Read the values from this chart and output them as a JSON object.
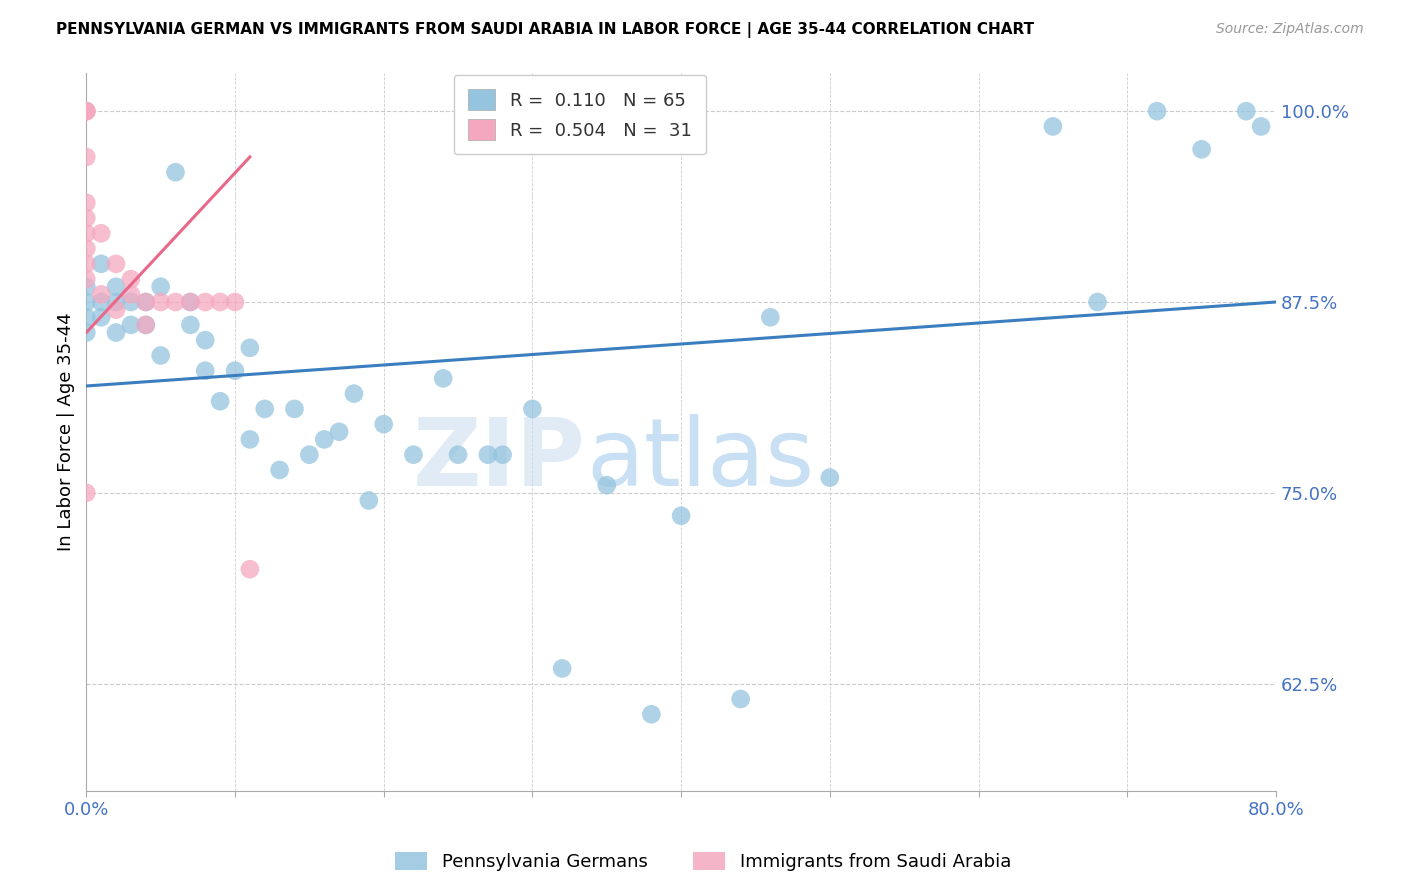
{
  "title": "PENNSYLVANIA GERMAN VS IMMIGRANTS FROM SAUDI ARABIA IN LABOR FORCE | AGE 35-44 CORRELATION CHART",
  "source": "Source: ZipAtlas.com",
  "ylabel": "In Labor Force | Age 35-44",
  "xlim": [
    0.0,
    0.8
  ],
  "ylim": [
    0.555,
    1.025
  ],
  "yticks": [
    0.625,
    0.75,
    0.875,
    1.0
  ],
  "ytick_labels": [
    "62.5%",
    "75.0%",
    "87.5%",
    "100.0%"
  ],
  "xticks": [
    0.0,
    0.1,
    0.2,
    0.3,
    0.4,
    0.5,
    0.6,
    0.7,
    0.8
  ],
  "xtick_labels": [
    "0.0%",
    "",
    "",
    "",
    "",
    "",
    "",
    "",
    "80.0%"
  ],
  "blue_R": 0.11,
  "blue_N": 65,
  "pink_R": 0.504,
  "pink_N": 31,
  "blue_color": "#94c4de",
  "pink_color": "#f4a8c0",
  "blue_line_color": "#3a7ebf",
  "pink_line_color": "#e8688a",
  "watermark": "ZIPatlas",
  "blue_points_x": [
    0.0,
    0.0,
    0.0,
    0.0,
    0.01,
    0.01,
    0.01,
    0.02,
    0.02,
    0.02,
    0.03,
    0.03,
    0.04,
    0.04,
    0.05,
    0.05,
    0.06,
    0.07,
    0.07,
    0.08,
    0.08,
    0.09,
    0.1,
    0.11,
    0.11,
    0.12,
    0.13,
    0.14,
    0.15,
    0.16,
    0.17,
    0.18,
    0.19,
    0.2,
    0.22,
    0.24,
    0.25,
    0.27,
    0.28,
    0.3,
    0.32,
    0.35,
    0.38,
    0.4,
    0.44,
    0.46,
    0.5,
    0.65,
    0.68,
    0.72,
    0.75,
    0.78,
    0.79
  ],
  "blue_points_y": [
    0.885,
    0.875,
    0.865,
    0.855,
    0.9,
    0.875,
    0.865,
    0.885,
    0.875,
    0.855,
    0.875,
    0.86,
    0.875,
    0.86,
    0.885,
    0.84,
    0.96,
    0.875,
    0.86,
    0.85,
    0.83,
    0.81,
    0.83,
    0.845,
    0.785,
    0.805,
    0.765,
    0.805,
    0.775,
    0.785,
    0.79,
    0.815,
    0.745,
    0.795,
    0.775,
    0.825,
    0.775,
    0.775,
    0.775,
    0.805,
    0.635,
    0.755,
    0.605,
    0.735,
    0.615,
    0.865,
    0.76,
    0.99,
    0.875,
    1.0,
    0.975,
    1.0,
    0.99
  ],
  "pink_points_x": [
    0.0,
    0.0,
    0.0,
    0.0,
    0.0,
    0.0,
    0.0,
    0.0,
    0.0,
    0.0,
    0.0,
    0.01,
    0.01,
    0.02,
    0.02,
    0.03,
    0.03,
    0.04,
    0.04,
    0.05,
    0.06,
    0.07,
    0.08,
    0.09,
    0.1,
    0.11
  ],
  "pink_points_y": [
    1.0,
    1.0,
    1.0,
    0.97,
    0.94,
    0.93,
    0.92,
    0.91,
    0.9,
    0.89,
    0.75,
    0.92,
    0.88,
    0.9,
    0.87,
    0.89,
    0.88,
    0.875,
    0.86,
    0.875,
    0.875,
    0.875,
    0.875,
    0.875,
    0.875,
    0.7
  ],
  "blue_trend_x0": 0.0,
  "blue_trend_x1": 0.8,
  "blue_trend_y0": 0.82,
  "blue_trend_y1": 0.875,
  "pink_trend_x0": 0.0,
  "pink_trend_x1": 0.11,
  "pink_trend_y0": 0.855,
  "pink_trend_y1": 0.97
}
